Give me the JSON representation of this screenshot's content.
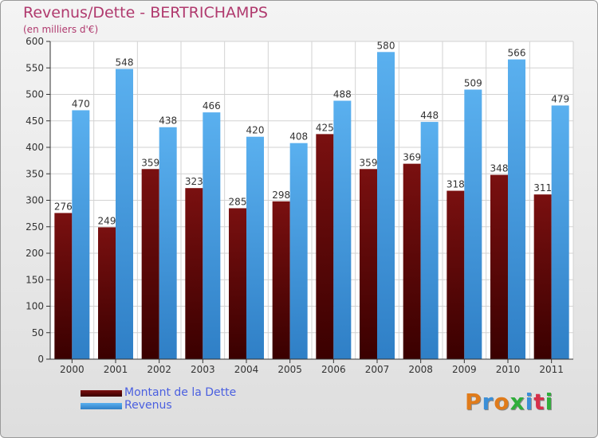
{
  "title": "Revenus/Dette - BERTRICHAMPS",
  "subtitle": "(en milliers d'€)",
  "logo": "Proxiti",
  "chart_data": {
    "type": "bar",
    "categories": [
      "2000",
      "2001",
      "2002",
      "2003",
      "2004",
      "2005",
      "2006",
      "2007",
      "2008",
      "2009",
      "2010",
      "2011"
    ],
    "series": [
      {
        "name": "Montant de la Dette",
        "values": [
          276,
          249,
          359,
          323,
          285,
          298,
          425,
          359,
          369,
          318,
          348,
          311
        ],
        "color": "#6a0a0a"
      },
      {
        "name": "Revenus",
        "values": [
          470,
          548,
          438,
          466,
          420,
          408,
          488,
          580,
          448,
          509,
          566,
          479
        ],
        "color": "#4aa3e6"
      }
    ],
    "ylim": [
      0,
      600
    ],
    "yticks": [
      0,
      50,
      100,
      150,
      200,
      250,
      300,
      350,
      400,
      450,
      500,
      550,
      600
    ],
    "grid": true,
    "legend_position": "bottom-left"
  }
}
